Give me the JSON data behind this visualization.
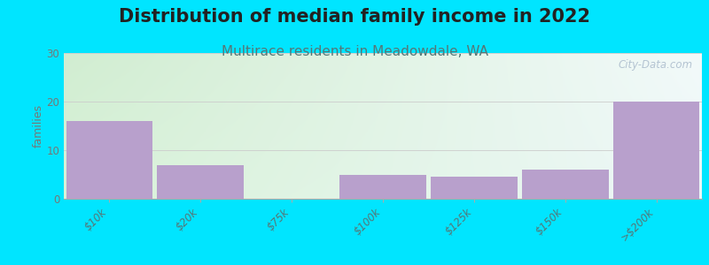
{
  "title": "Distribution of median family income in 2022",
  "subtitle": "Multirace residents in Meadowdale, WA",
  "categories": [
    "$10k",
    "$20k",
    "$75k",
    "$100k",
    "$125k",
    "$150k",
    ">$200k"
  ],
  "values": [
    16,
    7,
    0,
    5,
    4.5,
    6,
    20
  ],
  "bar_color": "#b8a0cc",
  "background_color": "#00e5ff",
  "plot_bg_top_left": "#c8e8c8",
  "plot_bg_top_right": "#f0f8f8",
  "plot_bg_bottom": "#e8f4e8",
  "ylabel": "families",
  "ylim": [
    0,
    30
  ],
  "yticks": [
    0,
    10,
    20,
    30
  ],
  "title_fontsize": 15,
  "subtitle_fontsize": 11,
  "title_color": "#222222",
  "subtitle_color": "#557777",
  "tick_label_color": "#557777",
  "ytick_color": "#777777",
  "watermark": "City-Data.com",
  "watermark_color": "#aabbcc"
}
